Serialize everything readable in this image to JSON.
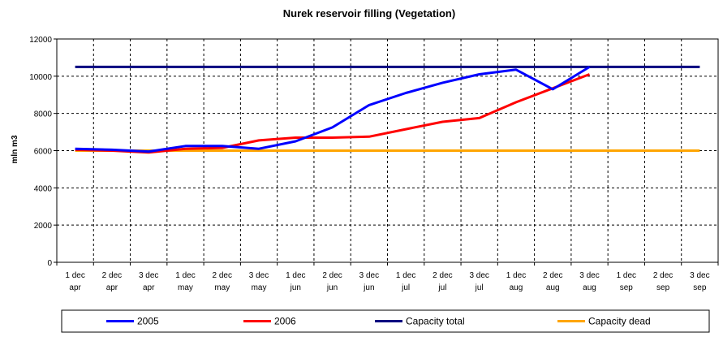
{
  "chart_data": {
    "type": "line",
    "title": "Nurek reservoir filling (Vegetation)",
    "xlabel": "",
    "ylabel": "mln m3",
    "ylim": [
      0,
      12000
    ],
    "yticks": [
      0,
      2000,
      4000,
      6000,
      8000,
      10000,
      12000
    ],
    "grid": true,
    "legend_position": "bottom",
    "categories": [
      [
        "1 dec",
        "apr"
      ],
      [
        "2 dec",
        "apr"
      ],
      [
        "3 dec",
        "apr"
      ],
      [
        "1 dec",
        "may"
      ],
      [
        "2 dec",
        "may"
      ],
      [
        "3 dec",
        "may"
      ],
      [
        "1 dec",
        "jun"
      ],
      [
        "2 dec",
        "jun"
      ],
      [
        "3 dec",
        "jun"
      ],
      [
        "1 dec",
        "jul"
      ],
      [
        "2 dec",
        "jul"
      ],
      [
        "3 dec",
        "jul"
      ],
      [
        "1 dec",
        "aug"
      ],
      [
        "2 dec",
        "aug"
      ],
      [
        "3 dec",
        "aug"
      ],
      [
        "1 dec",
        "sep"
      ],
      [
        "2 dec",
        "sep"
      ],
      [
        "3 dec",
        "sep"
      ]
    ],
    "series": [
      {
        "name": "2005",
        "color": "#0000FF",
        "values": [
          6100,
          6050,
          5950,
          6250,
          6250,
          6100,
          6500,
          7250,
          8450,
          9100,
          9650,
          10100,
          10350,
          9300,
          10500,
          null,
          null,
          null
        ]
      },
      {
        "name": "2006",
        "color": "#FF0000",
        "values": [
          6050,
          6000,
          5900,
          6100,
          6150,
          6550,
          6700,
          6700,
          6750,
          7150,
          7550,
          7750,
          8600,
          9350,
          10100,
          null,
          null,
          null
        ]
      },
      {
        "name": "Capacity total",
        "color": "#000080",
        "values": [
          10500,
          10500,
          10500,
          10500,
          10500,
          10500,
          10500,
          10500,
          10500,
          10500,
          10500,
          10500,
          10500,
          10500,
          10500,
          10500,
          10500,
          10500
        ]
      },
      {
        "name": "Capacity dead",
        "color": "#FFA500",
        "values": [
          6000,
          6000,
          6000,
          6000,
          6000,
          6000,
          6000,
          6000,
          6000,
          6000,
          6000,
          6000,
          6000,
          6000,
          6000,
          6000,
          6000,
          6000
        ]
      }
    ]
  }
}
